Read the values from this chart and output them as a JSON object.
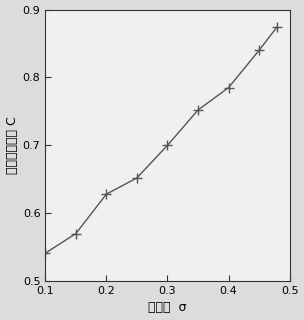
{
  "x": [
    0.1,
    0.15,
    0.2,
    0.25,
    0.3,
    0.35,
    0.4,
    0.45,
    0.48
  ],
  "y": [
    0.541,
    0.57,
    0.628,
    0.652,
    0.7,
    0.752,
    0.785,
    0.84,
    0.875
  ],
  "xlim": [
    0.1,
    0.5
  ],
  "ylim": [
    0.5,
    0.9
  ],
  "xticks": [
    0.1,
    0.2,
    0.3,
    0.4,
    0.5
  ],
  "yticks": [
    0.5,
    0.6,
    0.7,
    0.8,
    0.9
  ],
  "xlabel": "泊松比  σ",
  "ylabel": "深度校正因子 C",
  "line_color": "#555555",
  "marker": "+",
  "markersize": 7,
  "linewidth": 1.0,
  "plot_bg_color": "#f0f0ee",
  "outer_bg_color": "#dcdcda",
  "grid": false,
  "spine_color": "#333333"
}
